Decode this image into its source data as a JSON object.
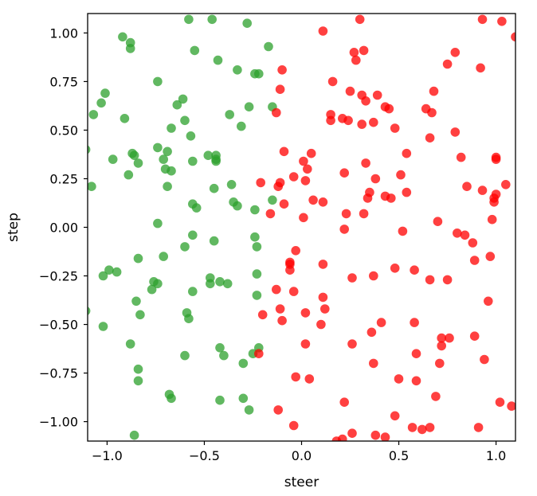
{
  "chart_data": {
    "type": "scatter",
    "xlabel": "steer",
    "ylabel": "step",
    "xlim": [
      -1.1,
      1.1
    ],
    "ylim": [
      -1.1,
      1.1
    ],
    "xticks": [
      "−1.0",
      "−0.5",
      "0.0",
      "0.5",
      "1.0"
    ],
    "xtick_values": [
      -1.0,
      -0.5,
      0.0,
      0.5,
      1.0
    ],
    "yticks": [
      "1.00",
      "0.75",
      "0.50",
      "0.25",
      "0.00",
      "−0.25",
      "−0.50",
      "−0.75",
      "−1.00"
    ],
    "ytick_values": [
      1.0,
      0.75,
      0.5,
      0.25,
      0.0,
      -0.25,
      -0.5,
      -0.75,
      -1.0
    ],
    "grid": false,
    "series": [
      {
        "color": "#2ca02c",
        "points": [
          [
            -0.92,
            0.98
          ],
          [
            -0.88,
            0.95
          ],
          [
            -0.88,
            0.92
          ],
          [
            -0.58,
            1.07
          ],
          [
            -0.46,
            1.07
          ],
          [
            -0.28,
            1.05
          ],
          [
            -0.17,
            0.93
          ],
          [
            -0.55,
            0.91
          ],
          [
            -0.43,
            0.86
          ],
          [
            -0.33,
            0.81
          ],
          [
            -0.24,
            0.79
          ],
          [
            -0.22,
            0.79
          ],
          [
            -0.74,
            0.75
          ],
          [
            -1.01,
            0.69
          ],
          [
            -1.03,
            0.64
          ],
          [
            -1.07,
            0.58
          ],
          [
            -0.91,
            0.56
          ],
          [
            -0.64,
            0.63
          ],
          [
            -0.61,
            0.66
          ],
          [
            -0.27,
            0.62
          ],
          [
            -0.37,
            0.58
          ],
          [
            -0.6,
            0.55
          ],
          [
            -0.31,
            0.52
          ],
          [
            -0.15,
            0.62
          ],
          [
            -0.67,
            0.51
          ],
          [
            -0.57,
            0.47
          ],
          [
            -0.84,
            0.33
          ],
          [
            -0.74,
            0.41
          ],
          [
            -0.69,
            0.39
          ],
          [
            -0.71,
            0.35
          ],
          [
            -0.87,
            0.38
          ],
          [
            -0.86,
            0.37
          ],
          [
            -0.48,
            0.37
          ],
          [
            -0.44,
            0.37
          ],
          [
            -1.11,
            0.4
          ],
          [
            -0.97,
            0.35
          ],
          [
            -0.56,
            0.34
          ],
          [
            -0.44,
            0.35
          ],
          [
            -0.89,
            0.27
          ],
          [
            -0.7,
            0.3
          ],
          [
            -0.67,
            0.29
          ],
          [
            -0.44,
            0.34
          ],
          [
            -0.36,
            0.22
          ],
          [
            -0.45,
            0.2
          ],
          [
            -0.69,
            0.21
          ],
          [
            -1.08,
            0.21
          ],
          [
            -0.56,
            0.12
          ],
          [
            -0.54,
            0.1
          ],
          [
            -0.35,
            0.13
          ],
          [
            -0.33,
            0.11
          ],
          [
            -0.24,
            0.09
          ],
          [
            -0.15,
            0.14
          ],
          [
            -0.74,
            0.02
          ],
          [
            -0.56,
            -0.04
          ],
          [
            -0.24,
            -0.05
          ],
          [
            -0.23,
            -0.1
          ],
          [
            -0.6,
            -0.1
          ],
          [
            -0.45,
            -0.07
          ],
          [
            -0.84,
            -0.16
          ],
          [
            -0.71,
            -0.15
          ],
          [
            -0.99,
            -0.22
          ],
          [
            -1.02,
            -0.25
          ],
          [
            -0.95,
            -0.23
          ],
          [
            -0.76,
            -0.28
          ],
          [
            -0.77,
            -0.32
          ],
          [
            -0.74,
            -0.29
          ],
          [
            -0.56,
            -0.33
          ],
          [
            -0.47,
            -0.26
          ],
          [
            -0.47,
            -0.29
          ],
          [
            -0.42,
            -0.28
          ],
          [
            -0.38,
            -0.29
          ],
          [
            -0.23,
            -0.24
          ],
          [
            -0.23,
            -0.35
          ],
          [
            -1.11,
            -0.43
          ],
          [
            -0.85,
            -0.38
          ],
          [
            -0.83,
            -0.45
          ],
          [
            -0.59,
            -0.44
          ],
          [
            -0.58,
            -0.47
          ],
          [
            -1.02,
            -0.51
          ],
          [
            -0.88,
            -0.6
          ],
          [
            -0.6,
            -0.66
          ],
          [
            -0.42,
            -0.62
          ],
          [
            -0.4,
            -0.66
          ],
          [
            -0.25,
            -0.65
          ],
          [
            -0.22,
            -0.62
          ],
          [
            -0.3,
            -0.7
          ],
          [
            -0.84,
            -0.73
          ],
          [
            -0.84,
            -0.79
          ],
          [
            -0.68,
            -0.86
          ],
          [
            -0.67,
            -0.88
          ],
          [
            -0.42,
            -0.89
          ],
          [
            -0.3,
            -0.88
          ],
          [
            -0.27,
            -0.94
          ],
          [
            -0.86,
            -1.07
          ]
        ]
      },
      {
        "color": "#ff0000",
        "points": [
          [
            0.11,
            1.01
          ],
          [
            0.3,
            1.07
          ],
          [
            1.03,
            1.06
          ],
          [
            1.1,
            0.98
          ],
          [
            0.93,
            1.07
          ],
          [
            0.27,
            0.9
          ],
          [
            0.28,
            0.86
          ],
          [
            0.32,
            0.91
          ],
          [
            0.79,
            0.9
          ],
          [
            0.75,
            0.84
          ],
          [
            0.92,
            0.82
          ],
          [
            -0.1,
            0.81
          ],
          [
            0.16,
            0.75
          ],
          [
            0.25,
            0.7
          ],
          [
            -0.11,
            0.71
          ],
          [
            0.31,
            0.68
          ],
          [
            0.39,
            0.68
          ],
          [
            0.43,
            0.62
          ],
          [
            0.45,
            0.61
          ],
          [
            0.64,
            0.61
          ],
          [
            0.67,
            0.59
          ],
          [
            0.68,
            0.7
          ],
          [
            -0.13,
            0.59
          ],
          [
            0.15,
            0.58
          ],
          [
            0.15,
            0.55
          ],
          [
            0.21,
            0.56
          ],
          [
            0.24,
            0.55
          ],
          [
            0.31,
            0.53
          ],
          [
            0.37,
            0.54
          ],
          [
            0.33,
            0.65
          ],
          [
            0.48,
            0.51
          ],
          [
            0.79,
            0.49
          ],
          [
            0.66,
            0.46
          ],
          [
            -0.09,
            0.39
          ],
          [
            0.05,
            0.38
          ],
          [
            0.54,
            0.38
          ],
          [
            0.82,
            0.36
          ],
          [
            1.0,
            0.36
          ],
          [
            1.0,
            0.35
          ],
          [
            0.01,
            0.34
          ],
          [
            0.03,
            0.3
          ],
          [
            0.33,
            0.33
          ],
          [
            0.22,
            0.28
          ],
          [
            0.51,
            0.27
          ],
          [
            -0.21,
            0.23
          ],
          [
            -0.12,
            0.21
          ],
          [
            -0.11,
            0.23
          ],
          [
            -0.04,
            0.26
          ],
          [
            0.02,
            0.24
          ],
          [
            0.38,
            0.25
          ],
          [
            0.34,
            0.15
          ],
          [
            0.35,
            0.18
          ],
          [
            0.43,
            0.16
          ],
          [
            0.46,
            0.15
          ],
          [
            0.54,
            0.18
          ],
          [
            0.85,
            0.21
          ],
          [
            0.93,
            0.19
          ],
          [
            0.99,
            0.15
          ],
          [
            1.0,
            0.17
          ],
          [
            1.05,
            0.22
          ],
          [
            -0.09,
            0.12
          ],
          [
            0.06,
            0.14
          ],
          [
            0.11,
            0.13
          ],
          [
            -0.16,
            0.07
          ],
          [
            0.01,
            0.05
          ],
          [
            0.23,
            0.07
          ],
          [
            0.32,
            0.07
          ],
          [
            0.7,
            0.03
          ],
          [
            0.99,
            0.13
          ],
          [
            0.98,
            0.04
          ],
          [
            0.22,
            -0.01
          ],
          [
            0.52,
            -0.02
          ],
          [
            0.8,
            -0.03
          ],
          [
            0.84,
            -0.04
          ],
          [
            0.88,
            -0.08
          ],
          [
            0.97,
            -0.15
          ],
          [
            0.89,
            -0.17
          ],
          [
            -0.06,
            -0.18
          ],
          [
            -0.03,
            -0.12
          ],
          [
            -0.06,
            -0.19
          ],
          [
            0.11,
            -0.19
          ],
          [
            0.26,
            -0.26
          ],
          [
            0.37,
            -0.25
          ],
          [
            0.48,
            -0.21
          ],
          [
            0.58,
            -0.22
          ],
          [
            0.66,
            -0.27
          ],
          [
            0.75,
            -0.27
          ],
          [
            -0.13,
            -0.32
          ],
          [
            -0.06,
            -0.22
          ],
          [
            -0.2,
            -0.45
          ],
          [
            -0.04,
            -0.33
          ],
          [
            0.11,
            -0.36
          ],
          [
            0.12,
            -0.42
          ],
          [
            -0.11,
            -0.42
          ],
          [
            -0.1,
            -0.48
          ],
          [
            0.02,
            -0.44
          ],
          [
            0.1,
            -0.5
          ],
          [
            0.41,
            -0.49
          ],
          [
            0.36,
            -0.54
          ],
          [
            0.58,
            -0.49
          ],
          [
            0.26,
            -0.6
          ],
          [
            0.72,
            -0.57
          ],
          [
            0.76,
            -0.57
          ],
          [
            0.72,
            -0.61
          ],
          [
            0.89,
            -0.56
          ],
          [
            0.96,
            -0.38
          ],
          [
            -0.22,
            -0.65
          ],
          [
            0.02,
            -0.6
          ],
          [
            0.59,
            -0.65
          ],
          [
            0.37,
            -0.7
          ],
          [
            0.71,
            -0.7
          ],
          [
            0.94,
            -0.68
          ],
          [
            -0.03,
            -0.77
          ],
          [
            0.04,
            -0.78
          ],
          [
            0.5,
            -0.78
          ],
          [
            0.59,
            -0.79
          ],
          [
            0.69,
            -0.87
          ],
          [
            0.22,
            -0.9
          ],
          [
            -0.12,
            -0.94
          ],
          [
            0.48,
            -0.97
          ],
          [
            1.02,
            -0.9
          ],
          [
            1.08,
            -0.92
          ],
          [
            -0.04,
            -1.02
          ],
          [
            0.26,
            -1.06
          ],
          [
            0.38,
            -1.07
          ],
          [
            0.43,
            -1.08
          ],
          [
            0.57,
            -1.03
          ],
          [
            0.62,
            -1.04
          ],
          [
            0.66,
            -1.03
          ],
          [
            0.91,
            -1.03
          ],
          [
            0.18,
            -1.1
          ],
          [
            0.21,
            -1.09
          ]
        ]
      }
    ]
  }
}
